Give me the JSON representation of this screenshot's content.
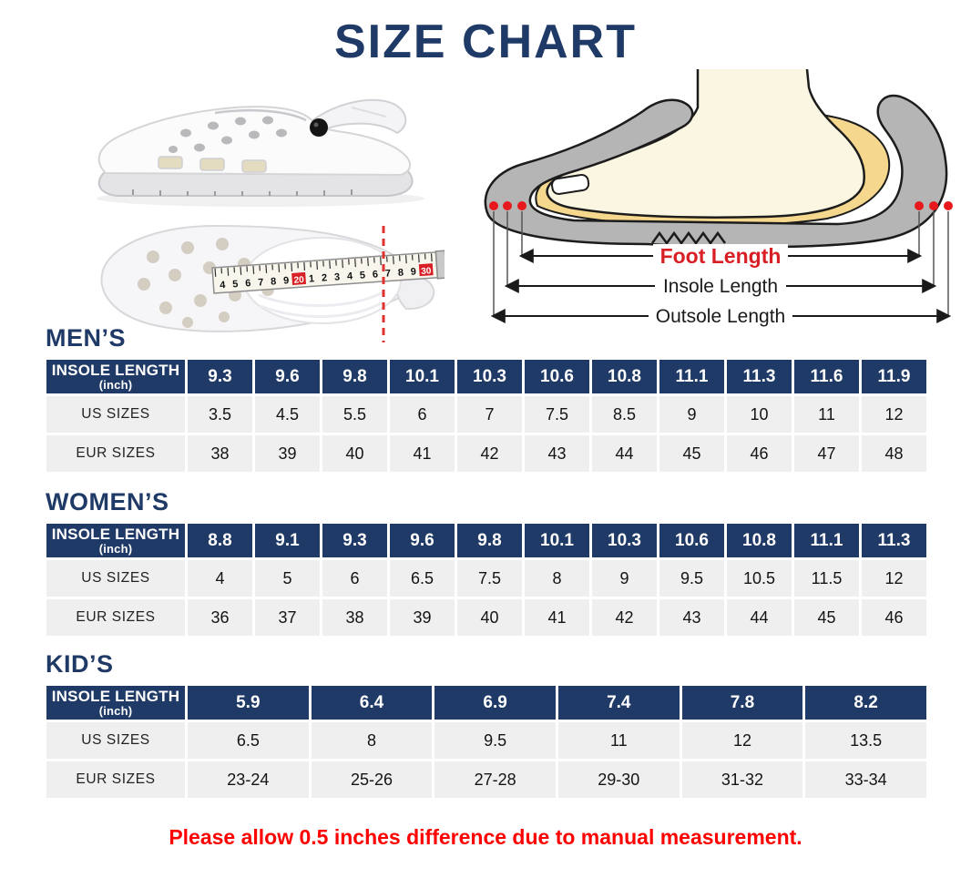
{
  "title": "SIZE CHART",
  "note": "Please allow 0.5 inches difference due to manual measurement.",
  "colors": {
    "navy": "#1f3a66",
    "row_gray": "#efefef",
    "note_red": "#ff0000",
    "foot_label_red": "#d81f26",
    "shoe_gray": "#b5b5b5",
    "insole_yellow": "#f5d78e",
    "foot_cream": "#fbf6e2"
  },
  "diagram": {
    "foot_length_label": "Foot Length",
    "insole_length_label": "Insole Length",
    "outsole_length_label": "Outsole Length"
  },
  "tape": {
    "numbers": [
      "4",
      "5",
      "6",
      "7",
      "8",
      "9",
      "20",
      "1",
      "2",
      "3",
      "4",
      "5",
      "6",
      "7",
      "8",
      "9",
      "30"
    ],
    "red_numbers": [
      "20",
      "30"
    ]
  },
  "tables": [
    {
      "heading": "MEN’S",
      "header_label": "INSOLE LENGTH",
      "header_unit": "(inch)",
      "insole_lengths": [
        "9.3",
        "9.6",
        "9.8",
        "10.1",
        "10.3",
        "10.6",
        "10.8",
        "11.1",
        "11.3",
        "11.6",
        "11.9"
      ],
      "rows": [
        {
          "label": "US SIZES",
          "values": [
            "3.5",
            "4.5",
            "5.5",
            "6",
            "7",
            "7.5",
            "8.5",
            "9",
            "10",
            "11",
            "12"
          ]
        },
        {
          "label": "EUR SIZES",
          "values": [
            "38",
            "39",
            "40",
            "41",
            "42",
            "43",
            "44",
            "45",
            "46",
            "47",
            "48"
          ]
        }
      ]
    },
    {
      "heading": "WOMEN’S",
      "header_label": "INSOLE LENGTH",
      "header_unit": "(inch)",
      "insole_lengths": [
        "8.8",
        "9.1",
        "9.3",
        "9.6",
        "9.8",
        "10.1",
        "10.3",
        "10.6",
        "10.8",
        "11.1",
        "11.3"
      ],
      "rows": [
        {
          "label": "US SIZES",
          "values": [
            "4",
            "5",
            "6",
            "6.5",
            "7.5",
            "8",
            "9",
            "9.5",
            "10.5",
            "11.5",
            "12"
          ]
        },
        {
          "label": "EUR SIZES",
          "values": [
            "36",
            "37",
            "38",
            "39",
            "40",
            "41",
            "42",
            "43",
            "44",
            "45",
            "46"
          ]
        }
      ]
    },
    {
      "heading": "KID’S",
      "header_label": "INSOLE LENGTH",
      "header_unit": "(inch)",
      "insole_lengths": [
        "5.9",
        "6.4",
        "6.9",
        "7.4",
        "7.8",
        "8.2"
      ],
      "rows": [
        {
          "label": "US SIZES",
          "values": [
            "6.5",
            "8",
            "9.5",
            "11",
            "12",
            "13.5"
          ]
        },
        {
          "label": "EUR SIZES",
          "values": [
            "23-24",
            "25-26",
            "27-28",
            "29-30",
            "31-32",
            "33-34"
          ]
        }
      ]
    }
  ]
}
